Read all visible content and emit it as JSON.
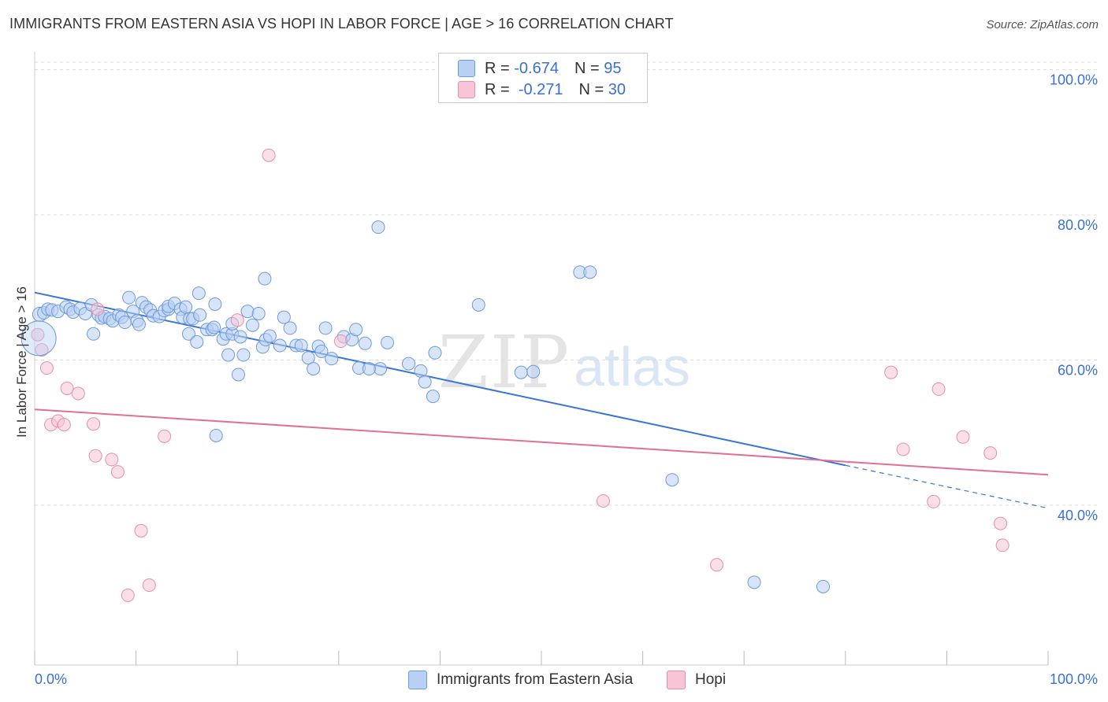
{
  "title": "IMMIGRANTS FROM EASTERN ASIA VS HOPI IN LABOR FORCE | AGE > 16 CORRELATION CHART",
  "source": "Source: ZipAtlas.com",
  "legend": {
    "row1": {
      "r_label": "R =",
      "r_value": "-0.674",
      "n_label": "N =",
      "n_value": "95"
    },
    "row2": {
      "r_label": "R =",
      "r_value": "-0.271",
      "n_label": "N =",
      "n_value": "30"
    }
  },
  "colors": {
    "blue": "#3a76d6",
    "blue_fill": "#b8d0f4",
    "pink": "#e07098",
    "pink_fill": "#f7c5d5",
    "tick_text": "#3a6fd8"
  },
  "chart_data": {
    "type": "scatter",
    "title": "IMMIGRANTS FROM EASTERN ASIA VS HOPI IN LABOR FORCE | AGE > 16 CORRELATION CHART",
    "xlabel": "",
    "ylabel": "In Labor Force | Age > 16",
    "xlim": [
      0,
      100
    ],
    "ylim": [
      18,
      102
    ],
    "x_tick_labels": [
      "0.0%",
      "100.0%"
    ],
    "y_ticks": [
      40,
      60,
      80,
      100
    ],
    "y_tick_labels": [
      "40.0%",
      "60.0%",
      "80.0%",
      "100.0%"
    ],
    "grid": true,
    "legend_position": "top-center",
    "series": [
      {
        "name": "Immigrants from Eastern Asia",
        "color": "#3a76d6",
        "trend": {
          "x0": 0,
          "y0": 69.3,
          "x1": 80,
          "y1": 45.5,
          "dashed_to_x": 100,
          "dashed_to_y": 39.6
        },
        "points": [
          [
            0.5,
            66.3
          ],
          [
            0.9,
            66.5
          ],
          [
            1.3,
            67.0
          ],
          [
            1.7,
            66.9
          ],
          [
            2.3,
            66.7
          ],
          [
            3.1,
            67.3
          ],
          [
            3.5,
            67.0
          ],
          [
            3.8,
            66.6
          ],
          [
            4.5,
            67.1
          ],
          [
            5.0,
            66.4
          ],
          [
            5.6,
            67.6
          ],
          [
            5.8,
            63.6
          ],
          [
            6.3,
            66.2
          ],
          [
            6.6,
            65.8
          ],
          [
            6.9,
            66.0
          ],
          [
            7.4,
            65.7
          ],
          [
            7.7,
            65.4
          ],
          [
            8.3,
            66.2
          ],
          [
            8.6,
            65.9
          ],
          [
            8.9,
            65.2
          ],
          [
            9.3,
            68.6
          ],
          [
            9.7,
            66.7
          ],
          [
            10.1,
            65.4
          ],
          [
            10.3,
            64.9
          ],
          [
            10.6,
            67.9
          ],
          [
            11.0,
            67.3
          ],
          [
            11.4,
            66.9
          ],
          [
            11.7,
            66.1
          ],
          [
            12.3,
            66.0
          ],
          [
            12.8,
            66.8
          ],
          [
            13.2,
            67.0
          ],
          [
            13.2,
            67.4
          ],
          [
            13.8,
            67.8
          ],
          [
            14.4,
            67.0
          ],
          [
            14.6,
            65.9
          ],
          [
            14.9,
            67.3
          ],
          [
            15.3,
            65.7
          ],
          [
            15.6,
            65.7
          ],
          [
            15.2,
            63.6
          ],
          [
            16.0,
            62.5
          ],
          [
            16.3,
            66.2
          ],
          [
            16.2,
            69.2
          ],
          [
            17.0,
            64.2
          ],
          [
            17.5,
            64.2
          ],
          [
            17.7,
            64.5
          ],
          [
            17.8,
            67.7
          ],
          [
            18.6,
            62.9
          ],
          [
            18.9,
            63.6
          ],
          [
            19.1,
            60.7
          ],
          [
            19.5,
            63.6
          ],
          [
            19.5,
            65.0
          ],
          [
            20.1,
            58.0
          ],
          [
            20.3,
            63.2
          ],
          [
            20.6,
            60.7
          ],
          [
            21.0,
            66.7
          ],
          [
            21.5,
            64.8
          ],
          [
            22.1,
            66.4
          ],
          [
            22.5,
            61.8
          ],
          [
            22.7,
            71.2
          ],
          [
            22.8,
            62.8
          ],
          [
            23.2,
            63.3
          ],
          [
            24.2,
            62.0
          ],
          [
            24.6,
            65.9
          ],
          [
            25.2,
            64.4
          ],
          [
            25.8,
            62.0
          ],
          [
            26.3,
            62.0
          ],
          [
            27.0,
            60.3
          ],
          [
            27.5,
            58.8
          ],
          [
            28.0,
            61.9
          ],
          [
            28.3,
            61.2
          ],
          [
            28.7,
            64.4
          ],
          [
            29.3,
            60.2
          ],
          [
            30.5,
            63.2
          ],
          [
            31.3,
            62.8
          ],
          [
            31.7,
            64.2
          ],
          [
            32.0,
            58.9
          ],
          [
            32.6,
            62.3
          ],
          [
            33.9,
            78.3
          ],
          [
            34.1,
            58.8
          ],
          [
            34.8,
            62.4
          ],
          [
            36.9,
            59.5
          ],
          [
            38.1,
            58.5
          ],
          [
            38.5,
            57.0
          ],
          [
            39.5,
            61.0
          ],
          [
            39.3,
            55.0
          ],
          [
            43.8,
            67.6
          ],
          [
            48.0,
            58.3
          ],
          [
            49.2,
            58.4
          ],
          [
            53.8,
            72.1
          ],
          [
            54.8,
            72.1
          ],
          [
            62.9,
            43.5
          ],
          [
            71.0,
            29.4
          ],
          [
            77.8,
            28.8
          ],
          [
            17.9,
            49.6
          ],
          [
            33.0,
            58.8
          ]
        ]
      },
      {
        "name": "Hopi",
        "color": "#e07098",
        "trend": {
          "x0": 0,
          "y0": 53.2,
          "x1": 100,
          "y1": 44.2
        },
        "points": [
          [
            0.3,
            63.5
          ],
          [
            0.7,
            61.4
          ],
          [
            1.2,
            58.9
          ],
          [
            1.6,
            51.1
          ],
          [
            2.3,
            51.6
          ],
          [
            2.9,
            51.1
          ],
          [
            3.2,
            56.1
          ],
          [
            4.3,
            55.4
          ],
          [
            5.8,
            51.2
          ],
          [
            6.0,
            46.8
          ],
          [
            6.2,
            67.0
          ],
          [
            7.6,
            46.3
          ],
          [
            8.2,
            44.6
          ],
          [
            9.2,
            27.6
          ],
          [
            10.5,
            36.5
          ],
          [
            11.3,
            29.0
          ],
          [
            12.8,
            49.5
          ],
          [
            20.0,
            65.5
          ],
          [
            23.1,
            88.2
          ],
          [
            30.2,
            62.6
          ],
          [
            56.1,
            40.6
          ],
          [
            67.3,
            31.8
          ],
          [
            84.5,
            58.3
          ],
          [
            85.7,
            47.7
          ],
          [
            88.7,
            40.5
          ],
          [
            89.2,
            56.0
          ],
          [
            91.6,
            49.4
          ],
          [
            94.3,
            47.2
          ],
          [
            95.3,
            37.5
          ],
          [
            95.5,
            34.5
          ]
        ]
      }
    ]
  },
  "bottom_legend": {
    "series1": "Immigrants from Eastern Asia",
    "series2": "Hopi"
  },
  "watermark": {
    "zip": "ZIP",
    "atlas": "atlas"
  }
}
